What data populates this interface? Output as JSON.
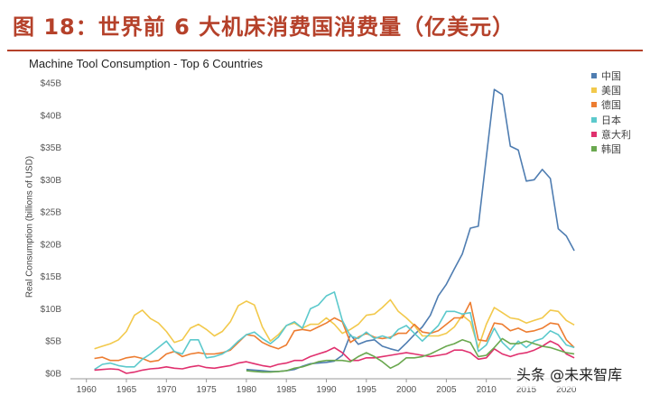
{
  "figure_caption": "图 18：世界前 6 大机床消费国消费量（亿美元）",
  "watermark": "头条 @未来智库",
  "chart_data": {
    "type": "line",
    "title": "Machine Tool Consumption - Top 6 Countries",
    "xlabel": "",
    "ylabel": "Real Consumption (billions of USD)",
    "xlim": [
      1958,
      2022
    ],
    "ylim": [
      0,
      45
    ],
    "x_ticks": [
      1960,
      1965,
      1970,
      1975,
      1980,
      1985,
      1990,
      1995,
      2000,
      2005,
      2010,
      2015,
      2020
    ],
    "x_tick_labels": [
      "1960",
      "1965",
      "1970",
      "1975",
      "1980",
      "1985",
      "1990",
      "1995",
      "2000",
      "2005",
      "2010",
      "2015",
      "2020"
    ],
    "y_ticks": [
      0,
      5,
      10,
      15,
      20,
      25,
      30,
      35,
      40,
      45
    ],
    "y_tick_labels": [
      "$0B",
      "$5B",
      "$10B",
      "$15B",
      "$20B",
      "$25B",
      "$30B",
      "$35B",
      "$40B",
      "$45B"
    ],
    "grid": false,
    "legend_position": "right",
    "series": [
      {
        "name": "中国",
        "color": "#4f7db1",
        "x": [
          1980,
          1981,
          1982,
          1983,
          1984,
          1985,
          1986,
          1987,
          1988,
          1989,
          1990,
          1991,
          1992,
          1993,
          1994,
          1995,
          1996,
          1997,
          1998,
          1999,
          2000,
          2001,
          2002,
          2003,
          2004,
          2005,
          2006,
          2007,
          2008,
          2009,
          2010,
          2011,
          2012,
          2013,
          2014,
          2015,
          2016,
          2017,
          2018,
          2019,
          2020,
          2021
        ],
        "y": [
          0.6,
          0.5,
          0.4,
          0.3,
          0.3,
          0.4,
          0.6,
          1.1,
          1.5,
          1.6,
          1.7,
          1.9,
          2.8,
          6.0,
          4.5,
          5.0,
          5.2,
          4.2,
          3.8,
          3.5,
          4.7,
          6.0,
          7.2,
          9.0,
          12.0,
          13.8,
          16.2,
          18.5,
          22.5,
          22.8,
          33.5,
          44.0,
          43.2,
          35.2,
          34.6,
          29.8,
          30.0,
          31.6,
          30.2,
          22.4,
          21.3,
          19.0
        ]
      },
      {
        "name": "美国",
        "color": "#f2c94c",
        "x": [
          1961,
          1962,
          1963,
          1964,
          1965,
          1966,
          1967,
          1968,
          1969,
          1970,
          1971,
          1972,
          1973,
          1974,
          1975,
          1976,
          1977,
          1978,
          1979,
          1980,
          1981,
          1982,
          1983,
          1984,
          1985,
          1986,
          1987,
          1988,
          1989,
          1990,
          1991,
          1992,
          1993,
          1994,
          1995,
          1996,
          1997,
          1998,
          1999,
          2000,
          2001,
          2002,
          2003,
          2004,
          2005,
          2006,
          2007,
          2008,
          2009,
          2010,
          2011,
          2012,
          2013,
          2014,
          2015,
          2016,
          2017,
          2018,
          2019,
          2020,
          2021
        ],
        "y": [
          3.8,
          4.2,
          4.6,
          5.2,
          6.5,
          9.0,
          9.8,
          8.5,
          7.8,
          6.5,
          4.8,
          5.2,
          7.0,
          7.6,
          6.8,
          5.8,
          6.5,
          8.0,
          10.5,
          11.2,
          10.6,
          7.2,
          5.0,
          6.0,
          7.4,
          7.8,
          7.0,
          7.6,
          7.6,
          8.6,
          7.6,
          6.2,
          6.8,
          7.6,
          9.0,
          9.2,
          10.2,
          11.4,
          9.6,
          8.6,
          7.4,
          5.8,
          5.8,
          5.8,
          6.2,
          7.2,
          9.0,
          8.0,
          4.0,
          7.6,
          10.2,
          9.4,
          8.6,
          8.4,
          7.8,
          8.2,
          8.6,
          9.8,
          9.6,
          8.2,
          7.5
        ]
      },
      {
        "name": "德国",
        "color": "#ed7d31",
        "x": [
          1961,
          1962,
          1963,
          1964,
          1965,
          1966,
          1967,
          1968,
          1969,
          1970,
          1971,
          1972,
          1973,
          1974,
          1975,
          1976,
          1977,
          1978,
          1979,
          1980,
          1981,
          1982,
          1983,
          1984,
          1985,
          1986,
          1987,
          1988,
          1989,
          1990,
          1991,
          1992,
          1993,
          1994,
          1995,
          1996,
          1997,
          1998,
          1999,
          2000,
          2001,
          2002,
          2003,
          2004,
          2005,
          2006,
          2007,
          2008,
          2009,
          2010,
          2011,
          2012,
          2013,
          2014,
          2015,
          2016,
          2017,
          2018,
          2019,
          2020,
          2021
        ],
        "y": [
          2.3,
          2.5,
          2.0,
          2.0,
          2.4,
          2.6,
          2.3,
          1.8,
          2.0,
          3.0,
          3.4,
          2.6,
          3.0,
          3.2,
          3.0,
          3.0,
          3.2,
          3.6,
          4.8,
          6.0,
          5.8,
          4.8,
          4.2,
          3.8,
          4.4,
          6.6,
          6.8,
          6.6,
          7.2,
          7.8,
          8.6,
          8.0,
          4.8,
          5.6,
          6.2,
          5.6,
          5.4,
          5.6,
          6.2,
          6.2,
          7.6,
          6.4,
          6.2,
          6.6,
          7.6,
          8.6,
          8.6,
          11.0,
          5.2,
          5.0,
          7.8,
          7.6,
          6.6,
          7.0,
          6.4,
          6.6,
          7.0,
          7.8,
          7.6,
          5.2,
          4.0
        ]
      },
      {
        "name": "日本",
        "color": "#5cc9cc",
        "x": [
          1961,
          1962,
          1963,
          1964,
          1965,
          1966,
          1967,
          1968,
          1969,
          1970,
          1971,
          1972,
          1973,
          1974,
          1975,
          1976,
          1977,
          1978,
          1979,
          1980,
          1981,
          1982,
          1983,
          1984,
          1985,
          1986,
          1987,
          1988,
          1989,
          1990,
          1991,
          1992,
          1993,
          1994,
          1995,
          1996,
          1997,
          1998,
          1999,
          2000,
          2001,
          2002,
          2003,
          2004,
          2005,
          2006,
          2007,
          2008,
          2009,
          2010,
          2011,
          2012,
          2013,
          2014,
          2015,
          2016,
          2017,
          2018,
          2019,
          2020,
          2021
        ],
        "y": [
          0.6,
          1.4,
          1.6,
          1.2,
          1.0,
          1.0,
          2.2,
          3.0,
          4.0,
          5.0,
          3.4,
          3.0,
          5.2,
          5.2,
          2.4,
          2.6,
          3.0,
          3.8,
          5.0,
          6.0,
          6.4,
          5.4,
          4.6,
          5.6,
          7.4,
          8.0,
          7.0,
          10.0,
          10.6,
          12.0,
          12.6,
          8.2,
          5.8,
          5.4,
          6.4,
          5.4,
          5.8,
          5.4,
          6.8,
          7.4,
          6.2,
          5.0,
          6.2,
          7.4,
          9.6,
          9.6,
          9.2,
          9.4,
          3.4,
          4.4,
          7.0,
          4.8,
          3.6,
          5.0,
          4.0,
          5.0,
          5.4,
          6.6,
          6.0,
          4.4,
          4.0
        ]
      },
      {
        "name": "意大利",
        "color": "#e0306e",
        "x": [
          1961,
          1962,
          1963,
          1964,
          1965,
          1966,
          1967,
          1968,
          1969,
          1970,
          1971,
          1972,
          1973,
          1974,
          1975,
          1976,
          1977,
          1978,
          1979,
          1980,
          1981,
          1982,
          1983,
          1984,
          1985,
          1986,
          1987,
          1988,
          1989,
          1990,
          1991,
          1992,
          1993,
          1994,
          1995,
          1996,
          1997,
          1998,
          1999,
          2000,
          2001,
          2002,
          2003,
          2004,
          2005,
          2006,
          2007,
          2008,
          2009,
          2010,
          2011,
          2012,
          2013,
          2014,
          2015,
          2016,
          2017,
          2018,
          2019,
          2020,
          2021
        ],
        "y": [
          0.5,
          0.6,
          0.7,
          0.6,
          0.0,
          0.2,
          0.5,
          0.7,
          0.8,
          1.0,
          0.8,
          0.7,
          1.0,
          1.2,
          0.9,
          0.8,
          1.0,
          1.2,
          1.6,
          1.8,
          1.5,
          1.2,
          1.0,
          1.4,
          1.6,
          2.0,
          2.0,
          2.6,
          3.0,
          3.4,
          4.0,
          3.2,
          2.0,
          2.0,
          2.4,
          2.4,
          2.6,
          2.8,
          3.0,
          3.2,
          3.0,
          2.8,
          2.6,
          2.8,
          3.0,
          3.6,
          3.6,
          3.2,
          2.2,
          2.4,
          3.8,
          3.0,
          2.6,
          3.0,
          3.2,
          3.6,
          4.2,
          5.0,
          4.4,
          3.0,
          2.4
        ]
      },
      {
        "name": "韩国",
        "color": "#6aa84f",
        "x": [
          1980,
          1981,
          1982,
          1983,
          1984,
          1985,
          1986,
          1987,
          1988,
          1989,
          1990,
          1991,
          1992,
          1993,
          1994,
          1995,
          1996,
          1997,
          1998,
          1999,
          2000,
          2001,
          2002,
          2003,
          2004,
          2005,
          2006,
          2007,
          2008,
          2009,
          2010,
          2011,
          2012,
          2013,
          2014,
          2015,
          2016,
          2017,
          2018,
          2019,
          2020,
          2021
        ],
        "y": [
          0.4,
          0.3,
          0.2,
          0.2,
          0.3,
          0.4,
          0.8,
          1.0,
          1.4,
          1.8,
          2.0,
          2.0,
          2.0,
          1.8,
          2.6,
          3.2,
          2.6,
          1.8,
          0.8,
          1.4,
          2.4,
          2.4,
          2.6,
          3.0,
          3.6,
          4.2,
          4.6,
          5.2,
          4.8,
          2.6,
          2.8,
          4.0,
          5.4,
          4.6,
          4.6,
          5.0,
          4.6,
          4.2,
          4.0,
          3.6,
          3.2,
          3.0
        ]
      }
    ]
  }
}
